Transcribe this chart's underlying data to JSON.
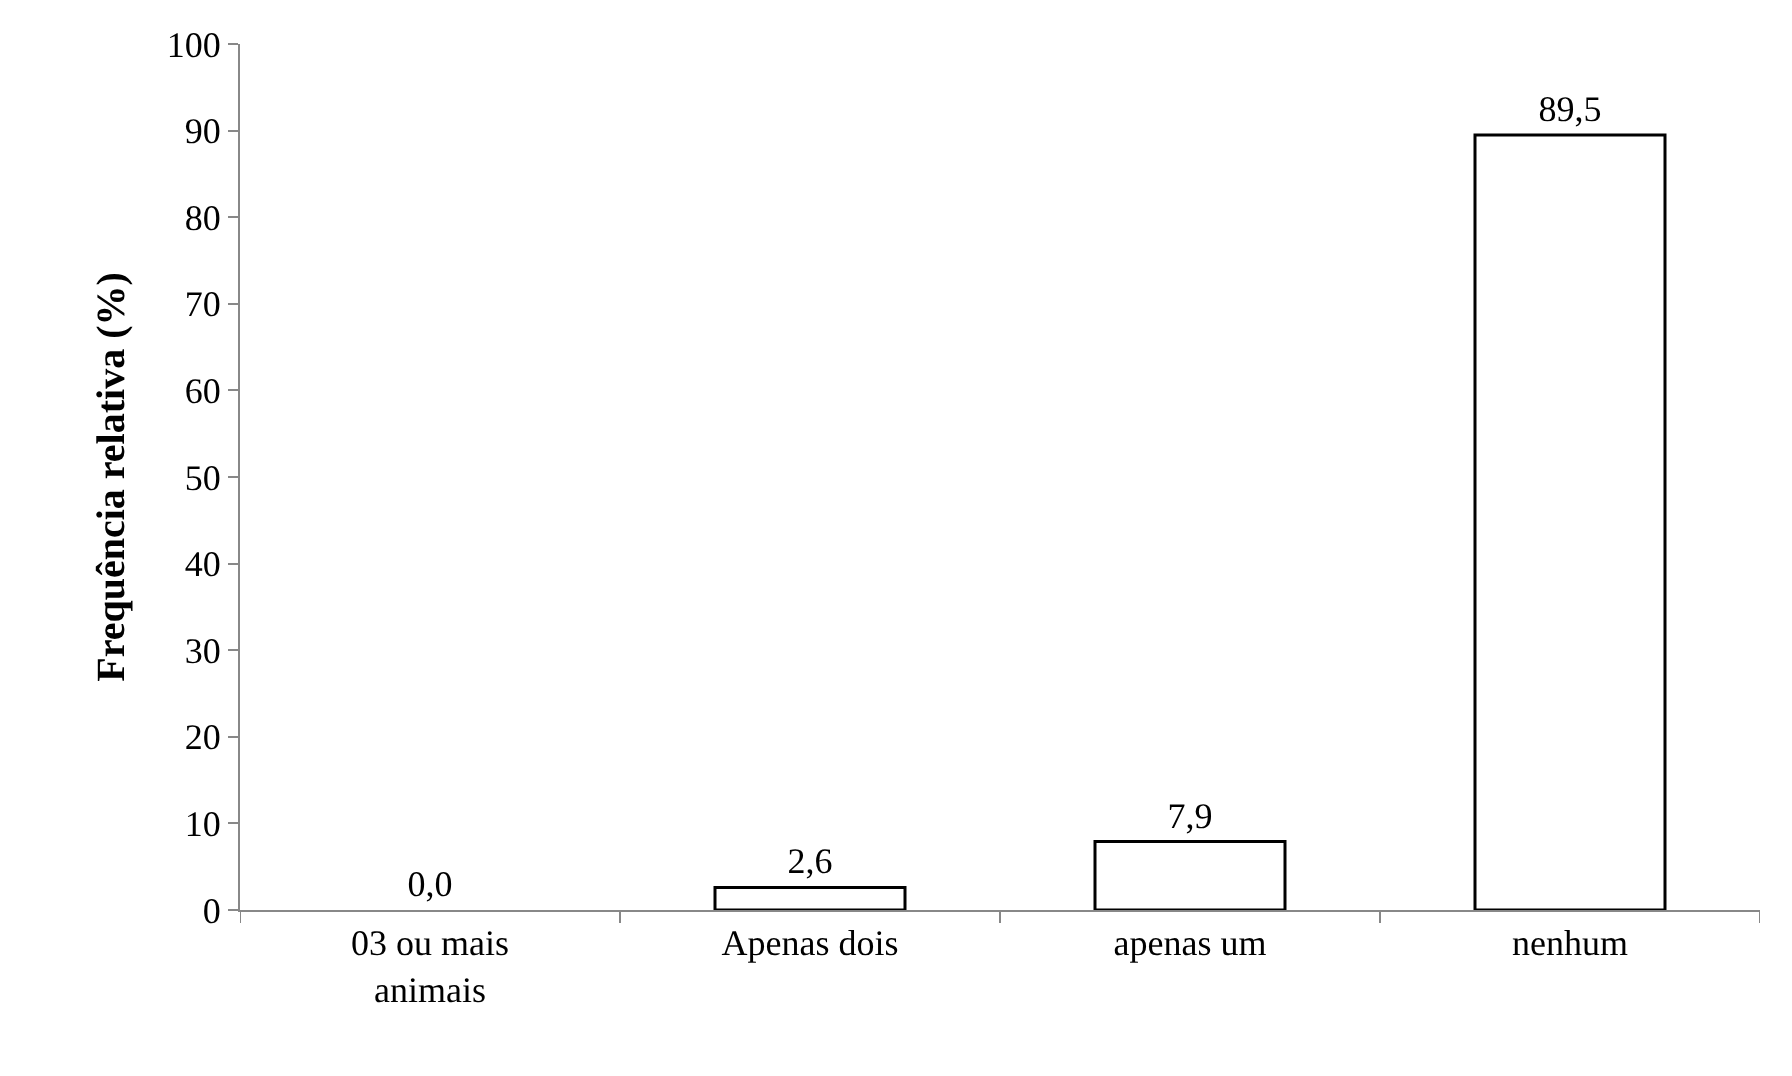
{
  "chart_data": {
    "type": "bar",
    "ylabel": "Frequência relativa (%)",
    "categories": [
      "03 ou mais animais",
      "Apenas dois",
      "apenas um",
      "nenhum"
    ],
    "values": [
      0.0,
      2.6,
      7.9,
      89.5
    ],
    "value_labels": [
      "0,0",
      "2,6",
      "7,9",
      "89,5"
    ],
    "color": "#ffffff",
    "ylim": [
      0,
      100
    ],
    "yticks": [
      0,
      10,
      20,
      30,
      40,
      50,
      60,
      70,
      80,
      90,
      100
    ],
    "legend": false
  }
}
